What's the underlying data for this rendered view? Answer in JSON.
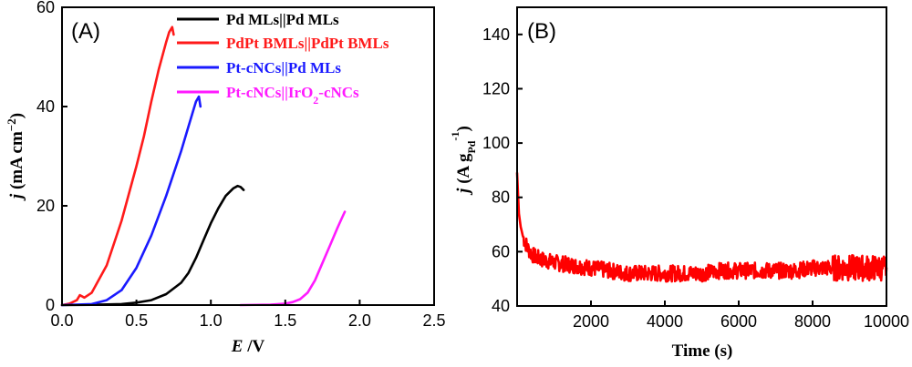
{
  "chart_data": [
    {
      "panel_label": "(A)",
      "type": "line",
      "xlabel": "E /V",
      "xlabel_parts": {
        "var": "E",
        "rest": " /V"
      },
      "ylabel": "j (mA cm-2)",
      "ylabel_parts": {
        "var": "j",
        "rest": " (mA cm",
        "sup": "−2",
        "close": ")"
      },
      "xlim": [
        0.0,
        2.5
      ],
      "ylim": [
        0,
        60
      ],
      "xticks": [
        0.0,
        0.5,
        1.0,
        1.5,
        2.0,
        2.5
      ],
      "xtick_labels": [
        "0.0",
        "0.5",
        "1.0",
        "1.5",
        "2.0",
        "2.5"
      ],
      "yticks": [
        0,
        20,
        40,
        60
      ],
      "ytick_labels": [
        "0",
        "20",
        "40",
        "60"
      ],
      "legend_position": "top-right",
      "grid": false,
      "series": [
        {
          "name": "Pd MLs||Pd MLs",
          "legend_parts": {
            "main": "Pd MLs||Pd MLs"
          },
          "color": "#000000",
          "x": [
            0.0,
            0.2,
            0.4,
            0.5,
            0.6,
            0.7,
            0.8,
            0.85,
            0.9,
            0.95,
            1.0,
            1.05,
            1.1,
            1.15,
            1.18,
            1.2,
            1.22
          ],
          "y": [
            0.0,
            0.05,
            0.2,
            0.5,
            1.0,
            2.2,
            4.5,
            6.5,
            9.5,
            13.0,
            16.5,
            19.5,
            22.0,
            23.5,
            24.0,
            23.8,
            23.2
          ]
        },
        {
          "name": "PdPt BMLs||PdPt BMLs",
          "legend_parts": {
            "main": "PdPt BMLs||PdPt BMLs"
          },
          "color": "#ff1a1a",
          "x": [
            0.0,
            0.05,
            0.1,
            0.12,
            0.15,
            0.2,
            0.3,
            0.4,
            0.5,
            0.55,
            0.6,
            0.65,
            0.7,
            0.72,
            0.74,
            0.75
          ],
          "y": [
            0.0,
            0.3,
            1.0,
            2.0,
            1.5,
            2.5,
            8.0,
            17.0,
            28.0,
            34.0,
            41.0,
            47.5,
            53.0,
            55.0,
            56.0,
            54.5
          ]
        },
        {
          "name": "Pt-cNCs||Pd MLs",
          "legend_parts": {
            "main": "Pt-cNCs||Pd MLs"
          },
          "color": "#1a1aff",
          "x": [
            0.0,
            0.2,
            0.3,
            0.4,
            0.5,
            0.6,
            0.7,
            0.75,
            0.8,
            0.85,
            0.88,
            0.9,
            0.92,
            0.93
          ],
          "y": [
            0.0,
            0.2,
            1.0,
            3.0,
            7.5,
            14.0,
            22.0,
            26.5,
            31.0,
            36.0,
            39.0,
            41.0,
            42.0,
            40.0
          ]
        },
        {
          "name": "Pt-cNCs||IrO2-cNCs",
          "legend_parts": {
            "main": "Pt-cNCs||IrO",
            "sub": "2",
            "tail": "-cNCs"
          },
          "color": "#ff1aff",
          "x": [
            1.2,
            1.4,
            1.5,
            1.55,
            1.6,
            1.65,
            1.7,
            1.75,
            1.8,
            1.85,
            1.88,
            1.9
          ],
          "y": [
            0.0,
            0.1,
            0.3,
            0.6,
            1.2,
            2.5,
            5.0,
            8.5,
            12.0,
            15.5,
            17.5,
            18.8
          ]
        }
      ]
    },
    {
      "panel_label": "(B)",
      "type": "line",
      "xlabel": "Time (s)",
      "ylabel": "j (A gPd-1)",
      "ylabel_parts": {
        "var": "j",
        "rest": " (A g",
        "sub": "Pd",
        "sup": "-1",
        "close": ")"
      },
      "xlim": [
        0,
        10000
      ],
      "ylim": [
        40,
        150
      ],
      "xticks": [
        2000,
        4000,
        6000,
        8000,
        10000
      ],
      "xtick_labels": [
        "2000",
        "4000",
        "6000",
        "8000",
        "10000"
      ],
      "yticks": [
        40,
        60,
        80,
        100,
        120,
        140
      ],
      "ytick_labels": [
        "40",
        "60",
        "80",
        "100",
        "120",
        "140"
      ],
      "grid": false,
      "series": [
        {
          "color": "#ff0000",
          "x": [
            0,
            50,
            100,
            150,
            200,
            300,
            400,
            500,
            700,
            1000,
            1500,
            2000,
            2500,
            3000,
            3500,
            4000,
            4500,
            5000,
            5500,
            6000,
            6500,
            7000,
            7500,
            8000,
            8500,
            9000,
            9500,
            10000
          ],
          "y": [
            89,
            74,
            69,
            66,
            64,
            61,
            59,
            58,
            57,
            56,
            55,
            54,
            53,
            52,
            52,
            52,
            52,
            52,
            53,
            53,
            53,
            53,
            53,
            54,
            54,
            54,
            54,
            54
          ],
          "noise_amplitude": 3
        }
      ]
    }
  ]
}
